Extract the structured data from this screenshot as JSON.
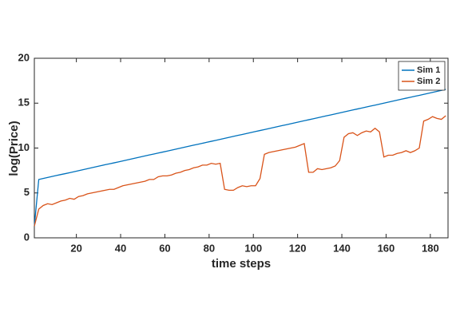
{
  "chart_data": {
    "type": "line",
    "xlabel": "time steps",
    "ylabel": "log(Price)",
    "x": [
      1,
      3,
      5,
      7,
      9,
      11,
      13,
      15,
      17,
      19,
      21,
      23,
      25,
      27,
      29,
      31,
      33,
      35,
      37,
      39,
      41,
      43,
      45,
      47,
      49,
      51,
      53,
      55,
      57,
      59,
      61,
      63,
      65,
      67,
      69,
      71,
      73,
      75,
      77,
      79,
      81,
      83,
      85,
      87,
      89,
      91,
      93,
      95,
      97,
      99,
      101,
      103,
      105,
      107,
      109,
      111,
      113,
      115,
      117,
      119,
      121,
      123,
      125,
      127,
      129,
      131,
      133,
      135,
      137,
      139,
      141,
      143,
      145,
      147,
      149,
      151,
      153,
      155,
      157,
      159,
      161,
      163,
      165,
      167,
      169,
      171,
      173,
      175,
      177,
      179,
      181,
      183,
      185,
      187
    ],
    "series": [
      {
        "name": "Sim 1",
        "color": "#0072BD",
        "values": [
          1.3,
          6.5,
          6.61,
          6.72,
          6.83,
          6.94,
          7.05,
          7.15,
          7.26,
          7.37,
          7.48,
          7.59,
          7.7,
          7.81,
          7.92,
          8.03,
          8.14,
          8.24,
          8.35,
          8.46,
          8.57,
          8.68,
          8.79,
          8.9,
          9.01,
          9.12,
          9.23,
          9.33,
          9.44,
          9.55,
          9.66,
          9.77,
          9.88,
          9.99,
          10.1,
          10.21,
          10.32,
          10.42,
          10.53,
          10.64,
          10.75,
          10.86,
          10.97,
          11.08,
          11.19,
          11.3,
          11.41,
          11.51,
          11.62,
          11.73,
          11.84,
          11.95,
          12.06,
          12.17,
          12.28,
          12.39,
          12.5,
          12.6,
          12.71,
          12.82,
          12.93,
          13.04,
          13.15,
          13.26,
          13.37,
          13.48,
          13.59,
          13.69,
          13.8,
          13.91,
          14.02,
          14.13,
          14.24,
          14.35,
          14.46,
          14.57,
          14.68,
          14.78,
          14.89,
          15.0,
          15.11,
          15.22,
          15.33,
          15.44,
          15.55,
          15.66,
          15.77,
          15.87,
          15.98,
          16.09,
          16.2,
          16.31,
          16.42,
          16.53
        ]
      },
      {
        "name": "Sim 2",
        "color": "#D95319",
        "values": [
          1.3,
          3.2,
          3.6,
          3.8,
          3.7,
          3.9,
          4.1,
          4.2,
          4.4,
          4.3,
          4.6,
          4.7,
          4.9,
          5.0,
          5.1,
          5.2,
          5.3,
          5.4,
          5.4,
          5.6,
          5.8,
          5.9,
          6.0,
          6.1,
          6.2,
          6.3,
          6.5,
          6.5,
          6.8,
          6.9,
          6.9,
          7.0,
          7.2,
          7.3,
          7.5,
          7.6,
          7.8,
          7.9,
          8.1,
          8.1,
          8.3,
          8.2,
          8.3,
          5.4,
          5.3,
          5.3,
          5.6,
          5.8,
          5.7,
          5.8,
          5.8,
          6.6,
          9.3,
          9.5,
          9.6,
          9.7,
          9.8,
          9.9,
          10.0,
          10.1,
          10.3,
          10.5,
          7.3,
          7.3,
          7.7,
          7.6,
          7.7,
          7.8,
          8.0,
          8.6,
          11.2,
          11.6,
          11.7,
          11.4,
          11.7,
          11.9,
          11.8,
          12.2,
          11.8,
          9.0,
          9.2,
          9.2,
          9.4,
          9.5,
          9.7,
          9.5,
          9.7,
          10.0,
          13.0,
          13.2,
          13.5,
          13.3,
          13.2,
          13.6
        ]
      }
    ],
    "xlim": [
      1,
      188
    ],
    "ylim": [
      0,
      20
    ],
    "xticks": [
      20,
      40,
      60,
      80,
      100,
      120,
      140,
      160,
      180
    ],
    "yticks": [
      0,
      5,
      10,
      15,
      20
    ],
    "legend": "upper right"
  }
}
